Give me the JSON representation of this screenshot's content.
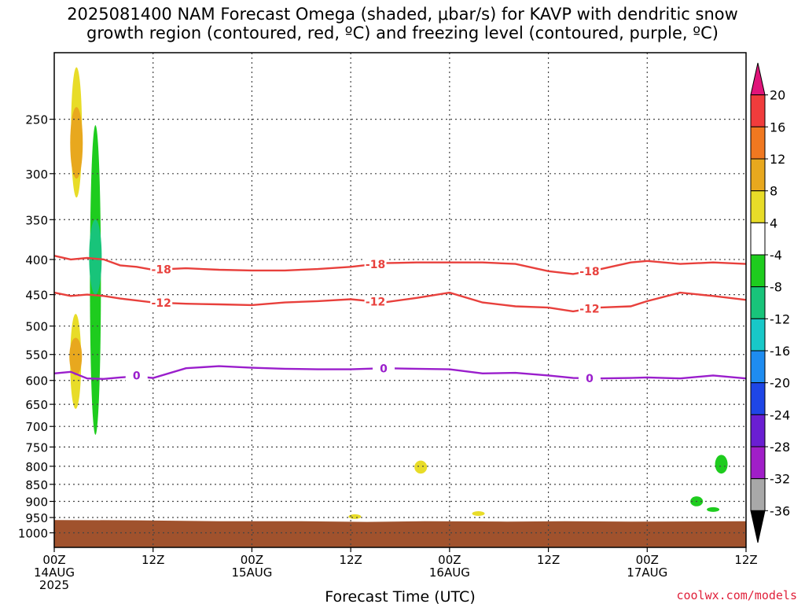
{
  "title_lines": [
    "2025081400 NAM Forecast Omega (shaded, μbar/s) for KAVP with dendritic snow",
    "growth region (contoured, red, ºC) and freezing level (contoured, purple, ºC)"
  ],
  "footer": "coolwx.com/models",
  "chart_data": {
    "type": "time-height cross section",
    "title": "2025081400 NAM Forecast Omega (shaded, μbar/s) for KAVP with dendritic snow growth region (contoured, red, ºC) and freezing level (contoured, purple, ºC)",
    "xlabel": "Forecast Time (UTC)",
    "x_range_hours": [
      0,
      84
    ],
    "x_ticks": [
      {
        "hour": 0,
        "label": "00Z",
        "sub": [
          "14AUG",
          "2025"
        ]
      },
      {
        "hour": 12,
        "label": "12Z",
        "sub": []
      },
      {
        "hour": 24,
        "label": "00Z",
        "sub": [
          "15AUG"
        ]
      },
      {
        "hour": 36,
        "label": "12Z",
        "sub": []
      },
      {
        "hour": 48,
        "label": "00Z",
        "sub": [
          "16AUG"
        ]
      },
      {
        "hour": 60,
        "label": "12Z",
        "sub": []
      },
      {
        "hour": 72,
        "label": "00Z",
        "sub": [
          "17AUG"
        ]
      },
      {
        "hour": 84,
        "label": "12Z",
        "sub": []
      }
    ],
    "y_axis": "pressure (hPa)",
    "y_ticks": [
      250,
      300,
      350,
      400,
      450,
      500,
      550,
      600,
      650,
      700,
      750,
      800,
      850,
      900,
      950,
      1000
    ],
    "y_range": [
      200,
      1050
    ],
    "y_scale": "log",
    "grid": true,
    "colorbar": {
      "labels": [
        "20",
        "16",
        "12",
        "8",
        "4",
        "-4",
        "-8",
        "-12",
        "-16",
        "-20",
        "-24",
        "-28",
        "-32",
        "-36"
      ],
      "colors": [
        "#e0147a",
        "#f03c3c",
        "#f07820",
        "#e8a81e",
        "#e8dc28",
        "#ffffff",
        "#1ecc1e",
        "#18c47a",
        "#18c8c8",
        "#1e8cf0",
        "#1e46e6",
        "#6a1ed2",
        "#a01ec8",
        "#a8a8a8",
        "#000000"
      ]
    },
    "contours": [
      {
        "label": "-18",
        "color": "#e8403c",
        "x": [
          0,
          2,
          4,
          6,
          8,
          10,
          12,
          16,
          20,
          24,
          28,
          32,
          36,
          40,
          44,
          48,
          52,
          56,
          60,
          63,
          66,
          70,
          72,
          76,
          80,
          84
        ],
        "y": [
          395,
          400,
          398,
          400,
          408,
          410,
          414,
          412,
          414,
          415,
          415,
          413,
          410,
          405,
          404,
          404,
          404,
          406,
          416,
          420,
          414,
          404,
          402,
          406,
          404,
          406
        ]
      },
      {
        "label": "-12",
        "color": "#e8403c",
        "x": [
          0,
          2,
          4,
          6,
          8,
          10,
          12,
          16,
          20,
          24,
          28,
          32,
          36,
          40,
          44,
          48,
          52,
          56,
          60,
          63,
          66,
          70,
          72,
          76,
          80,
          84
        ],
        "y": [
          447,
          452,
          450,
          452,
          456,
          459,
          462,
          464,
          465,
          466,
          462,
          460,
          457,
          462,
          455,
          447,
          462,
          468,
          470,
          476,
          470,
          468,
          460,
          447,
          452,
          458
        ]
      },
      {
        "label": "0",
        "color": "#9a1ecc",
        "x": [
          0,
          2,
          4,
          6,
          8,
          10,
          12,
          16,
          20,
          24,
          28,
          32,
          36,
          40,
          44,
          48,
          52,
          56,
          60,
          63,
          66,
          70,
          72,
          76,
          80,
          84
        ],
        "y": [
          586,
          583,
          596,
          597,
          594,
          592,
          595,
          576,
          572,
          575,
          577,
          578,
          578,
          576,
          577,
          578,
          586,
          585,
          590,
          595,
          596,
          595,
          594,
          596,
          590,
          596
        ]
      }
    ],
    "shaded_regions": [
      {
        "value_range": "4 to 8",
        "color": "#e8dc28",
        "x_center": 2.7,
        "y_top": 210,
        "y_bottom": 325
      },
      {
        "value_range": "8 to 12",
        "color": "#e8a81e",
        "x_center": 2.7,
        "y_top": 240,
        "y_bottom": 305
      },
      {
        "value_range": "-4 to -8",
        "color": "#1ecc1e",
        "x_center": 5.0,
        "y_top": 255,
        "y_bottom": 720
      },
      {
        "value_range": "-8 to -12",
        "color": "#18c47a",
        "x_center": 5.0,
        "y_top": 350,
        "y_bottom": 450
      },
      {
        "value_range": "4 to 8",
        "color": "#e8dc28",
        "x_center": 2.6,
        "y_top": 480,
        "y_bottom": 660
      },
      {
        "value_range": "8 to 12",
        "color": "#e8a81e",
        "x_center": 2.6,
        "y_top": 520,
        "y_bottom": 590
      },
      {
        "value_range": "4 to 8",
        "color": "#e8dc28",
        "x_center": 44.5,
        "y_top": 785,
        "y_bottom": 820
      },
      {
        "value_range": "4 to 8",
        "color": "#e8dc28",
        "x_center": 36.5,
        "y_top": 944,
        "y_bottom": 950
      },
      {
        "value_range": "4 to 8",
        "color": "#e8dc28",
        "x_center": 51.5,
        "y_top": 933,
        "y_bottom": 942
      },
      {
        "value_range": "-4 to -8",
        "color": "#1ecc1e",
        "x_center": 81.0,
        "y_top": 770,
        "y_bottom": 820
      },
      {
        "value_range": "-4 to -8",
        "color": "#1ecc1e",
        "x_center": 78.0,
        "y_top": 885,
        "y_bottom": 915
      },
      {
        "value_range": "-4 to -8",
        "color": "#1ecc1e",
        "x_center": 80.0,
        "y_top": 920,
        "y_bottom": 930
      }
    ],
    "terrain": {
      "color": "#a0522d",
      "surface_pressure_x": [
        0,
        10,
        20,
        30,
        38,
        45,
        55,
        62,
        70,
        84
      ],
      "surface_pressure_y": [
        958,
        959,
        962,
        962,
        964,
        962,
        963,
        962,
        963,
        962
      ]
    }
  }
}
